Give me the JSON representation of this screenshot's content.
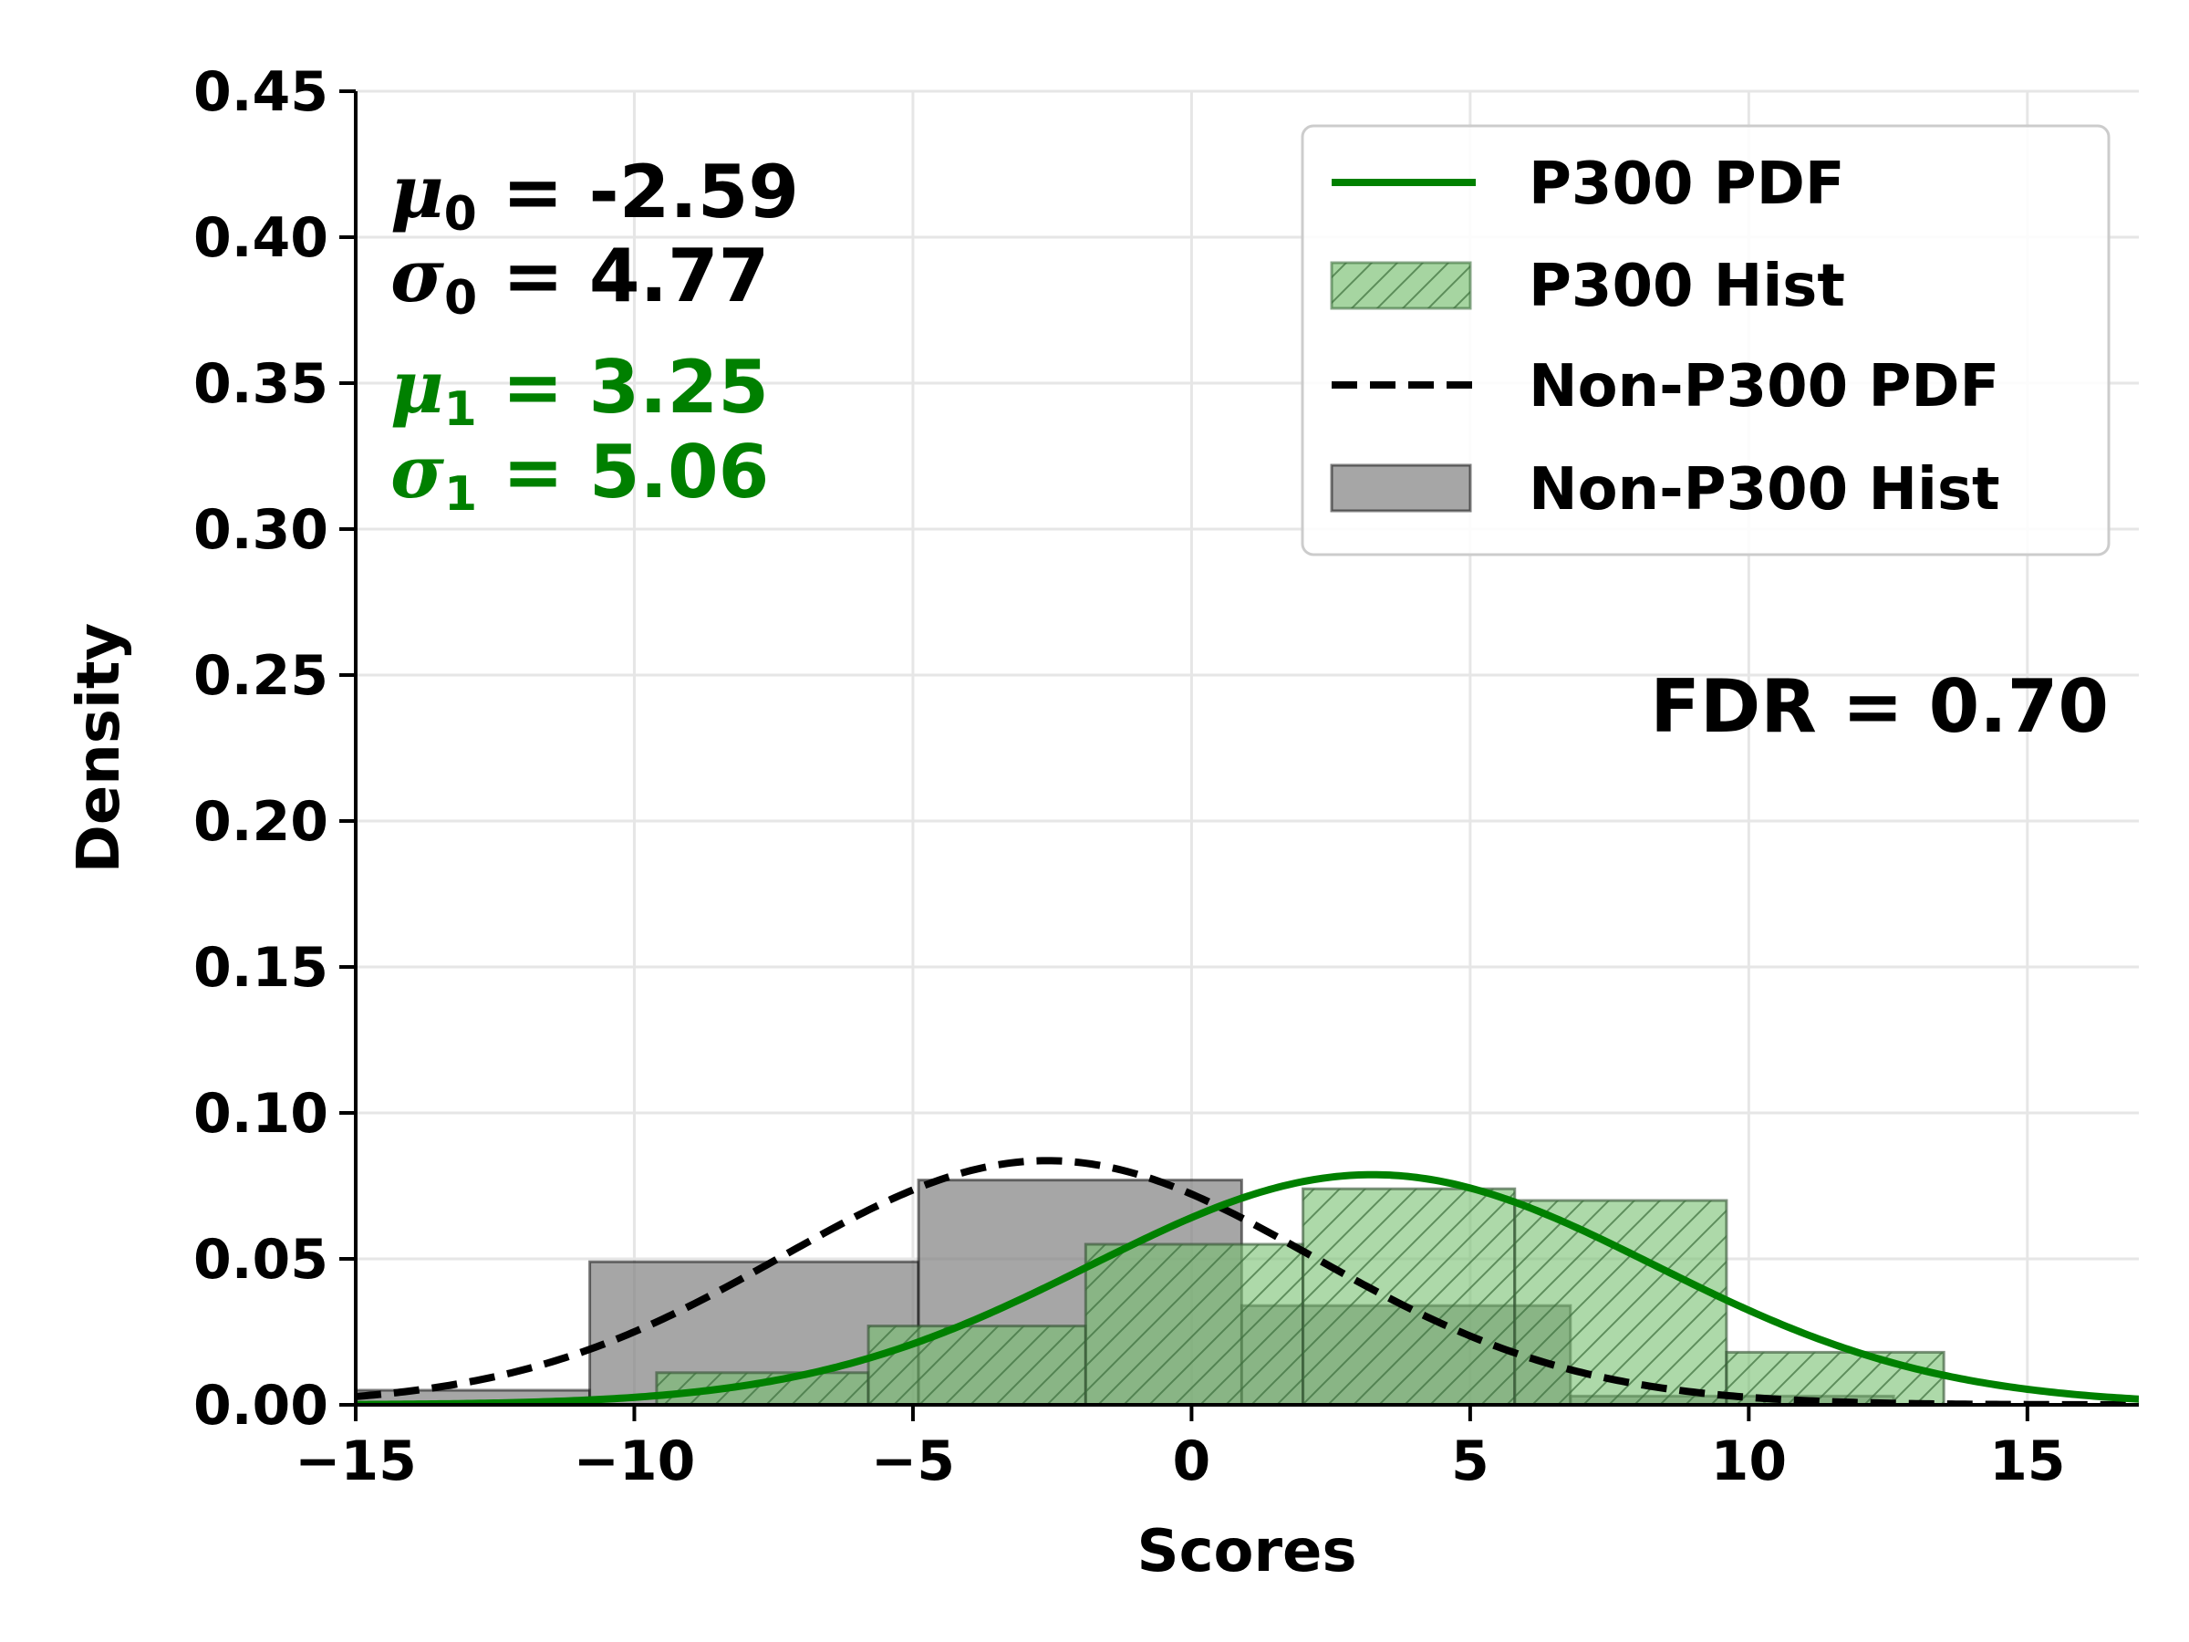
{
  "chart_data": {
    "type": "bar",
    "xlabel": "Scores",
    "ylabel": "Density",
    "xlim": [
      -15,
      17
    ],
    "ylim": [
      0,
      0.45
    ],
    "xticks": [
      -15,
      -10,
      -5,
      0,
      5,
      10,
      15
    ],
    "xtick_labels": [
      "−15",
      "−10",
      "−5",
      "0",
      "5",
      "10",
      "15"
    ],
    "yticks": [
      0,
      0.05,
      0.1,
      0.15,
      0.2,
      0.25,
      0.3,
      0.35,
      0.4,
      0.45
    ],
    "ytick_labels": [
      "0.00",
      "0.05",
      "0.10",
      "0.15",
      "0.20",
      "0.25",
      "0.30",
      "0.35",
      "0.40",
      "0.45"
    ],
    "grid": true,
    "legend_position": "top-right",
    "series": [
      {
        "name": "P300 PDF",
        "kind": "pdf",
        "mean": 3.25,
        "std": 5.06,
        "color": "#008000",
        "linestyle": "solid"
      },
      {
        "name": "P300 Hist",
        "kind": "hist",
        "color": "#76bf6f",
        "hatch": true,
        "bins": [
          [
            -9.6,
            -5.8,
            0.011
          ],
          [
            -5.8,
            -1.9,
            0.027
          ],
          [
            -1.9,
            2.0,
            0.055
          ],
          [
            2.0,
            5.8,
            0.074
          ],
          [
            5.8,
            9.6,
            0.07
          ],
          [
            9.6,
            13.5,
            0.018
          ]
        ]
      },
      {
        "name": "Non-P300 PDF",
        "kind": "pdf",
        "mean": -2.59,
        "std": 4.77,
        "color": "#000000",
        "linestyle": "dashed"
      },
      {
        "name": "Non-P300 Hist",
        "kind": "hist",
        "color": "#808080",
        "hatch": false,
        "bins": [
          [
            -15.0,
            -10.8,
            0.005
          ],
          [
            -10.8,
            -4.9,
            0.049
          ],
          [
            -4.9,
            0.9,
            0.077
          ],
          [
            0.9,
            6.8,
            0.034
          ],
          [
            6.8,
            12.6,
            0.003
          ]
        ]
      }
    ],
    "annotations": {
      "mu0": {
        "symbol": "μ",
        "sub": "0",
        "value": " = -2.59",
        "color": "#000000"
      },
      "sigma0": {
        "symbol": "σ",
        "sub": "0",
        "value": " = 4.77",
        "color": "#000000"
      },
      "mu1": {
        "symbol": "μ",
        "sub": "1",
        "value": " = 3.25",
        "color": "#008000"
      },
      "sigma1": {
        "symbol": "σ",
        "sub": "1",
        "value": " = 5.06",
        "color": "#008000"
      },
      "fdr": "FDR = 0.70"
    }
  }
}
